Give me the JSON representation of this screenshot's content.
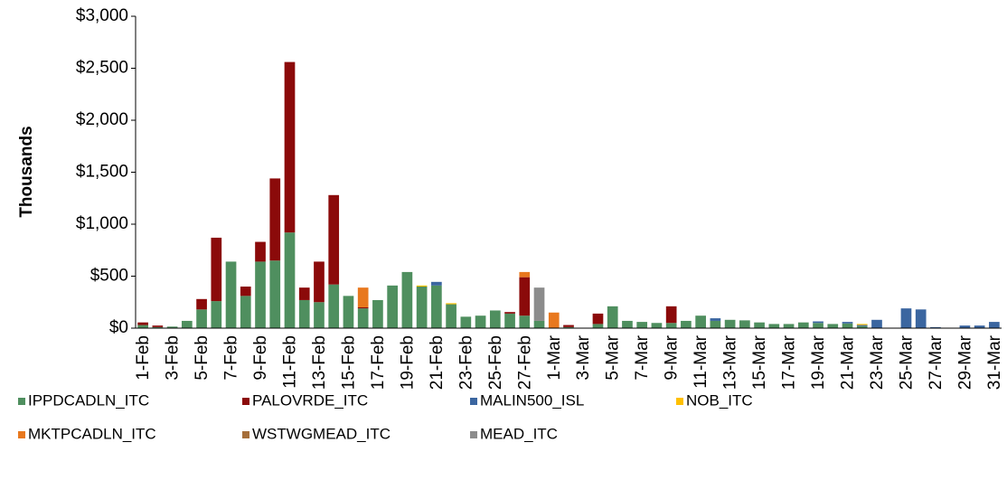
{
  "chart_data": {
    "type": "stacked_bar",
    "y_axis_title": "Thousands",
    "categories": [
      "1-Feb",
      null,
      "3-Feb",
      null,
      "5-Feb",
      null,
      "7-Feb",
      null,
      "9-Feb",
      null,
      "11-Feb",
      null,
      "13-Feb",
      null,
      "15-Feb",
      null,
      "17-Feb",
      null,
      "19-Feb",
      null,
      "21-Feb",
      null,
      "23-Feb",
      null,
      "25-Feb",
      null,
      "27-Feb",
      null,
      "1-Mar",
      null,
      "3-Mar",
      null,
      "5-Mar",
      null,
      "7-Mar",
      null,
      "9-Mar",
      null,
      "11-Mar",
      null,
      "13-Mar",
      null,
      "15-Mar",
      null,
      "17-Mar",
      null,
      "19-Mar",
      null,
      "21-Mar",
      null,
      "23-Mar",
      null,
      "25-Mar",
      null,
      "27-Mar",
      null,
      "29-Mar",
      null,
      "31-Mar"
    ],
    "series": [
      {
        "name": "IPPDCADLN_ITC",
        "color": "#4f8f5f",
        "values": [
          30,
          10,
          15,
          70,
          180,
          260,
          640,
          310,
          640,
          650,
          920,
          270,
          250,
          420,
          310,
          190,
          270,
          410,
          540,
          400,
          410,
          230,
          110,
          120,
          170,
          140,
          120,
          70,
          0,
          10,
          0,
          40,
          210,
          70,
          60,
          50,
          50,
          70,
          120,
          70,
          80,
          75,
          55,
          40,
          40,
          55,
          50,
          40,
          45,
          20,
          0,
          0,
          0,
          0,
          0,
          0,
          0,
          0,
          0
        ]
      },
      {
        "name": "PALOVRDE_ITC",
        "color": "#8b0a0a",
        "values": [
          25,
          15,
          0,
          0,
          100,
          610,
          0,
          90,
          190,
          790,
          1640,
          120,
          390,
          860,
          0,
          10,
          0,
          0,
          0,
          0,
          0,
          0,
          0,
          0,
          0,
          15,
          370,
          0,
          0,
          20,
          0,
          100,
          0,
          0,
          0,
          0,
          160,
          0,
          0,
          0,
          0,
          0,
          0,
          0,
          0,
          0,
          0,
          0,
          0,
          0,
          0,
          0,
          0,
          0,
          0,
          0,
          0,
          0,
          0
        ]
      },
      {
        "name": "MALIN500_ISL",
        "color": "#3b66a0",
        "values": [
          0,
          0,
          0,
          0,
          0,
          0,
          0,
          0,
          0,
          0,
          0,
          0,
          0,
          0,
          0,
          0,
          0,
          0,
          0,
          0,
          35,
          0,
          0,
          0,
          0,
          0,
          0,
          0,
          0,
          0,
          0,
          0,
          0,
          0,
          0,
          0,
          0,
          0,
          0,
          25,
          0,
          0,
          0,
          0,
          0,
          0,
          15,
          0,
          15,
          10,
          80,
          0,
          190,
          180,
          10,
          0,
          25,
          25,
          60
        ]
      },
      {
        "name": "NOB_ITC",
        "color": "#ffc000",
        "values": [
          0,
          0,
          0,
          0,
          0,
          0,
          0,
          0,
          0,
          0,
          0,
          0,
          0,
          0,
          0,
          0,
          0,
          0,
          0,
          10,
          0,
          10,
          0,
          0,
          0,
          0,
          0,
          0,
          0,
          0,
          0,
          0,
          0,
          0,
          0,
          0,
          0,
          0,
          0,
          0,
          0,
          0,
          0,
          0,
          0,
          0,
          0,
          0,
          0,
          10,
          0,
          0,
          0,
          0,
          0,
          0,
          0,
          0,
          0
        ]
      },
      {
        "name": "MKTPCADLN_ITC",
        "color": "#e8781e",
        "values": [
          0,
          0,
          0,
          0,
          0,
          0,
          0,
          0,
          0,
          0,
          0,
          0,
          0,
          0,
          0,
          190,
          0,
          0,
          0,
          0,
          0,
          0,
          0,
          0,
          0,
          0,
          50,
          0,
          150,
          0,
          0,
          0,
          0,
          0,
          0,
          0,
          0,
          0,
          0,
          0,
          0,
          0,
          0,
          0,
          0,
          0,
          0,
          0,
          0,
          0,
          0,
          0,
          0,
          0,
          0,
          0,
          0,
          0,
          0
        ]
      },
      {
        "name": "WSTWGMEAD_ITC",
        "color": "#a56e3a",
        "values": [
          0,
          0,
          0,
          0,
          0,
          0,
          0,
          0,
          0,
          0,
          0,
          0,
          0,
          0,
          0,
          0,
          0,
          0,
          0,
          0,
          0,
          0,
          0,
          0,
          0,
          0,
          0,
          0,
          0,
          0,
          0,
          0,
          0,
          0,
          0,
          0,
          0,
          0,
          0,
          0,
          0,
          0,
          0,
          0,
          0,
          0,
          0,
          0,
          0,
          0,
          0,
          0,
          0,
          0,
          0,
          0,
          0,
          0,
          0
        ]
      },
      {
        "name": "MEAD_ITC",
        "color": "#8c8c8c",
        "values": [
          0,
          0,
          0,
          0,
          0,
          0,
          0,
          0,
          0,
          0,
          0,
          0,
          0,
          0,
          0,
          0,
          0,
          0,
          0,
          0,
          0,
          0,
          0,
          0,
          0,
          0,
          0,
          320,
          0,
          0,
          0,
          0,
          0,
          0,
          0,
          0,
          0,
          0,
          0,
          0,
          0,
          0,
          0,
          0,
          0,
          0,
          0,
          0,
          0,
          0,
          0,
          0,
          0,
          0,
          0,
          0,
          0,
          0,
          0
        ]
      }
    ],
    "ylim": [
      0,
      3000
    ],
    "yticks": [
      {
        "value": 0,
        "label": "$0"
      },
      {
        "value": 500,
        "label": "$500"
      },
      {
        "value": 1000,
        "label": "$1,000"
      },
      {
        "value": 1500,
        "label": "$1,500"
      },
      {
        "value": 2000,
        "label": "$2,000"
      },
      {
        "value": 2500,
        "label": "$2,500"
      },
      {
        "value": 3000,
        "label": "$3,000"
      }
    ],
    "grid": false
  }
}
